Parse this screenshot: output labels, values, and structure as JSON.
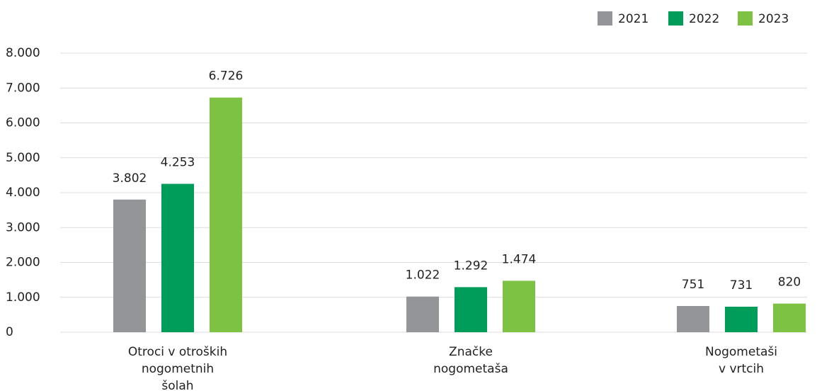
{
  "chart_data": {
    "type": "bar",
    "categories": [
      [
        "Otroci v otroških",
        "nogometnih",
        "šolah"
      ],
      [
        "Značke",
        "nogometaša"
      ],
      [
        "Nogometaši",
        "v vrtcih"
      ]
    ],
    "series": [
      {
        "name": "2021",
        "color": "#939598",
        "values": [
          3802,
          1022,
          751
        ],
        "value_labels": [
          "3.802",
          "1.022",
          "751"
        ]
      },
      {
        "name": "2022",
        "color": "#009c5a",
        "values": [
          4253,
          1292,
          731
        ],
        "value_labels": [
          "4.253",
          "1.292",
          "731"
        ]
      },
      {
        "name": "2023",
        "color": "#7dc242",
        "values": [
          6726,
          1474,
          820
        ],
        "value_labels": [
          "6.726",
          "1.474",
          "820"
        ]
      }
    ],
    "ylim": [
      0,
      8000
    ],
    "yticks": [
      0,
      {
        "value": 1000,
        "label": "1.000"
      },
      {
        "value": 2000,
        "label": "2.000"
      },
      {
        "value": 3000,
        "label": "3.000"
      },
      {
        "value": 4000,
        "label": "4.000"
      },
      {
        "value": 5000,
        "label": "5.000"
      },
      {
        "value": 6000,
        "label": "6.000"
      },
      {
        "value": 7000,
        "label": "7.000"
      },
      {
        "value": 8000,
        "label": "8.000"
      }
    ],
    "grid": true,
    "legend": "top-right"
  }
}
